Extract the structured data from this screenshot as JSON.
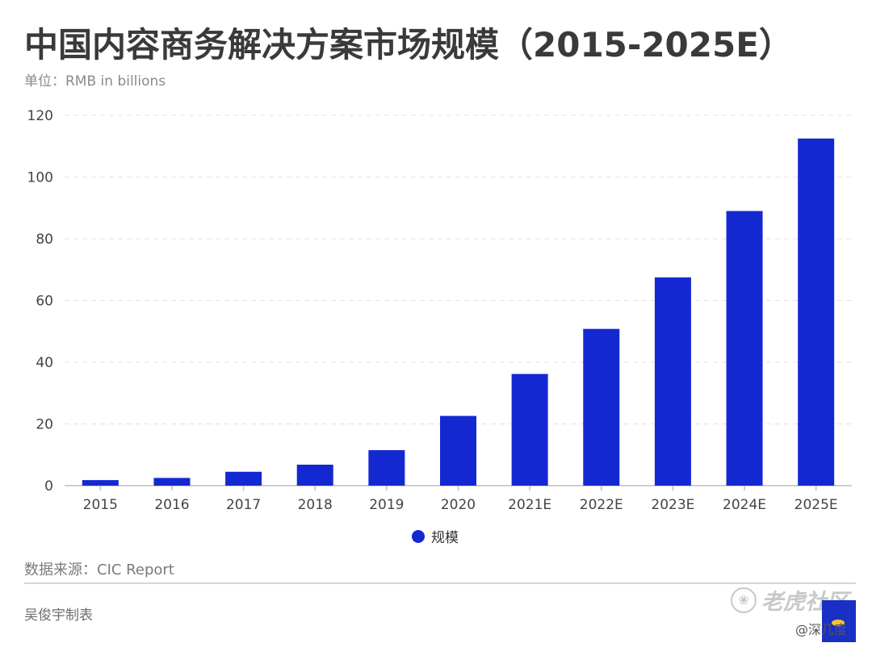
{
  "title": "中国内容商务解决方案市场规模（2015-2025E）",
  "unit": "单位：RMB in billions",
  "legend_label": "规模",
  "source": "数据来源：CIC Report",
  "author": "吴俊宇制表",
  "watermark": "老虎社区",
  "handle": "@深几度",
  "colors": {
    "bar": "#1428d2",
    "grid": "#e2e2e2",
    "axis": "#bdbdbd",
    "tick": "#444444"
  },
  "chart_data": {
    "type": "bar",
    "categories": [
      "2015",
      "2016",
      "2017",
      "2018",
      "2019",
      "2020",
      "2021E",
      "2022E",
      "2023E",
      "2024E",
      "2025E"
    ],
    "series": [
      {
        "name": "规模",
        "values": [
          1.8,
          2.5,
          4.5,
          6.8,
          11.5,
          22.6,
          36.2,
          50.8,
          67.5,
          89.0,
          112.5
        ]
      }
    ],
    "yticks": [
      0,
      20,
      40,
      60,
      80,
      100,
      120
    ],
    "ylim": [
      0,
      120
    ],
    "grid": true,
    "legend_position": "bottom"
  }
}
